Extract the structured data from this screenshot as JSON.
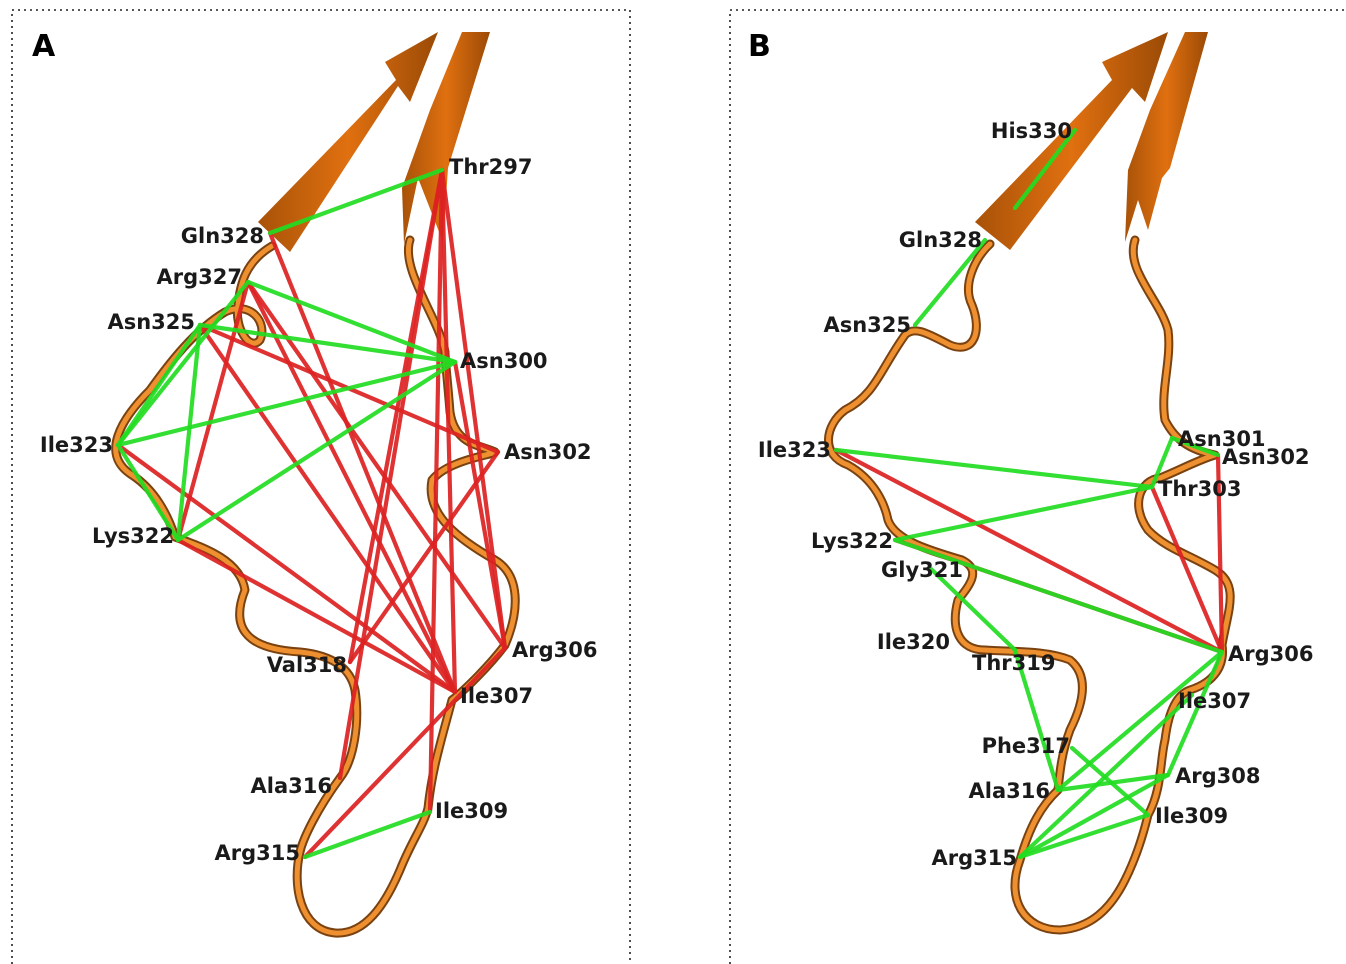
{
  "colors": {
    "contact_green": "#22dd22",
    "contact_red": "#dd2222",
    "strand": "#e07010",
    "tube": "#e88a25",
    "tube_dark": "#6a3a10"
  },
  "panels": [
    {
      "letter": "A",
      "residues": [
        "Thr297",
        "Gln328",
        "Arg327",
        "Asn325",
        "Asn300",
        "Ile323",
        "Asn302",
        "Lys322",
        "Arg306",
        "Val318",
        "Ile307",
        "Ala316",
        "Ile309",
        "Arg315"
      ],
      "green_contacts": [
        [
          "Gln328",
          "Thr297"
        ],
        [
          "Arg327",
          "Asn300"
        ],
        [
          "Asn325",
          "Asn300"
        ],
        [
          "Asn325",
          "Ile323"
        ],
        [
          "Asn325",
          "Lys322"
        ],
        [
          "Ile323",
          "Asn300"
        ],
        [
          "Ile323",
          "Lys322"
        ],
        [
          "Lys322",
          "Asn300"
        ],
        [
          "Arg327",
          "Ile323"
        ],
        [
          "Arg315",
          "Ile309"
        ]
      ],
      "red_contacts": [
        [
          "Thr297",
          "Val318"
        ],
        [
          "Thr297",
          "Ala316"
        ],
        [
          "Thr297",
          "Ile309"
        ],
        [
          "Thr297",
          "Arg306"
        ],
        [
          "Thr297",
          "Ile307"
        ],
        [
          "Gln328",
          "Ile307"
        ],
        [
          "Arg327",
          "Lys322"
        ],
        [
          "Arg327",
          "Arg306"
        ],
        [
          "Arg327",
          "Ile307"
        ],
        [
          "Asn325",
          "Ile307"
        ],
        [
          "Asn325",
          "Asn302"
        ],
        [
          "Ile323",
          "Ile307"
        ],
        [
          "Lys322",
          "Ile307"
        ],
        [
          "Asn302",
          "Val318"
        ],
        [
          "Asn300",
          "Arg306"
        ],
        [
          "Arg306",
          "Arg315"
        ]
      ]
    },
    {
      "letter": "B",
      "residues": [
        "His330",
        "Gln328",
        "Asn325",
        "Ile323",
        "Asn301",
        "Asn302",
        "Thr303",
        "Lys322",
        "Gly321",
        "Ile320",
        "Arg306",
        "Thr319",
        "Ile307",
        "Phe317",
        "Ala316",
        "Arg308",
        "Ile309",
        "Arg315"
      ],
      "green_contacts": [
        [
          "His330",
          "Gln328"
        ],
        [
          "Gln328",
          "Asn325"
        ],
        [
          "Ile323",
          "Thr303"
        ],
        [
          "Lys322",
          "Thr303"
        ],
        [
          "Lys322",
          "Arg306"
        ],
        [
          "Asn301",
          "Thr303"
        ],
        [
          "Asn301",
          "Asn302"
        ],
        [
          "Gly321",
          "Thr319"
        ],
        [
          "Thr319",
          "Ala316"
        ],
        [
          "Arg306",
          "Ala316"
        ],
        [
          "Arg306",
          "Arg308"
        ],
        [
          "Ile307",
          "Arg315"
        ],
        [
          "Phe317",
          "Ile309"
        ],
        [
          "Ala316",
          "Arg308"
        ],
        [
          "Arg315",
          "Arg308"
        ],
        [
          "Arg315",
          "Ile309"
        ]
      ],
      "red_contacts": [
        [
          "Ile323",
          "Arg306"
        ],
        [
          "Lys322",
          "Arg306"
        ],
        [
          "Thr303",
          "Arg306"
        ],
        [
          "Asn302",
          "Arg306"
        ]
      ]
    }
  ]
}
